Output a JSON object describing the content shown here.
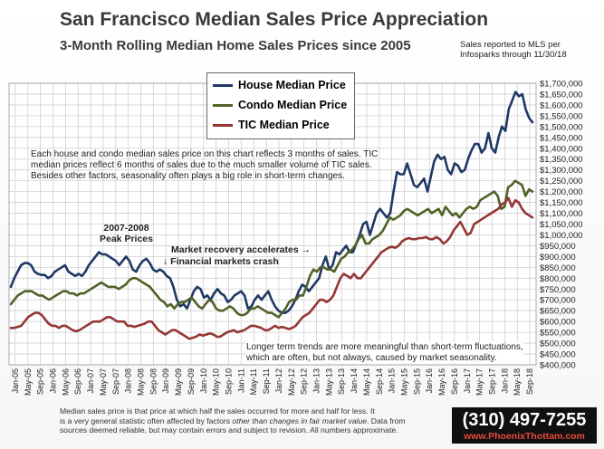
{
  "header": {
    "title": "San Francisco Median Sales Price Appreciation",
    "subtitle": "3-Month Rolling Median Home Sales Prices since 2005",
    "source_line1": "Sales reported to MLS per",
    "source_line2": "Infosparks  through  11/30/18"
  },
  "annotations": {
    "intro_line1": "Each house and condo median sales price on this chart reflects 3 months of sales. TIC",
    "intro_line2": "median prices reflect 6 months of sales due to the much smaller volume of TIC sales.",
    "intro_line3": "Besides other factors, seasonality often plays a big role in short-term  changes.",
    "peak_line1": "2007-2008",
    "peak_line2": "Peak Prices",
    "recovery": "Market recovery accelerates →",
    "crash": "↓ Financial markets crash",
    "trends_line1": "Longer term trends are more meaningful than short-term fluctuations,",
    "trends_line2": "which are often, but not always, caused by market seasonality."
  },
  "footer": {
    "line1_a": "Median sales price is that price at which half the sales occurred for more and half for less. It",
    "line2_a": "is a very general statistic often affected by factors ",
    "line2_em": "other than changes in fair market value",
    "line2_b": ". Data from",
    "line3": "sources deemed reliable, but may contain errors and subject to revision. All numbers approximate.",
    "phone": "(310) 497-7255",
    "website": "www.PhoenixThottam.com"
  },
  "colors": {
    "house": "#1f3864",
    "condo": "#4f6228",
    "tic": "#943634",
    "grid": "#d0d0d0"
  },
  "chart_data": {
    "type": "line",
    "x_ticks": [
      "Jan-05",
      "May-05",
      "Sep-05",
      "Jan-06",
      "May-06",
      "Sep-06",
      "Jan-07",
      "May-07",
      "Sep-07",
      "Jan-08",
      "May-08",
      "Sep-08",
      "Jan-09",
      "May-09",
      "Sep-09",
      "Jan-10",
      "May-10",
      "Sep-10",
      "Jan-11",
      "May-11",
      "Sep-11",
      "Jan-12",
      "May-12",
      "Sep-12",
      "Jan-13",
      "May-13",
      "Sep-13",
      "Jan-14",
      "May-14",
      "Sep-14",
      "Jan-15",
      "May-15",
      "Sep-15",
      "Jan-16",
      "May-16",
      "Sep-16",
      "Jan-17",
      "May-17",
      "Sep-17",
      "Jan-18",
      "May-18",
      "Sep-18"
    ],
    "y_ticks": [
      "$400,000",
      "$450,000",
      "$500,000",
      "$550,000",
      "$600,000",
      "$650,000",
      "$700,000",
      "$750,000",
      "$800,000",
      "$850,000",
      "$900,000",
      "$950,000",
      "$1,000,000",
      "$1,050,000",
      "$1,100,000",
      "$1,150,000",
      "$1,200,000",
      "$1,250,000",
      "$1,300,000",
      "$1,350,000",
      "$1,400,000",
      "$1,450,000",
      "$1,500,000",
      "$1,550,000",
      "$1,600,000",
      "$1,650,000",
      "$1,700,000"
    ],
    "ylim": [
      400000,
      1700000
    ],
    "grid": true,
    "legend_position": "top-center",
    "series": [
      {
        "name": "House Median Price",
        "values": [
          760000,
          800000,
          830000,
          860000,
          870000,
          870000,
          860000,
          830000,
          820000,
          815000,
          815000,
          800000,
          810000,
          830000,
          840000,
          850000,
          860000,
          830000,
          820000,
          810000,
          820000,
          810000,
          830000,
          860000,
          880000,
          900000,
          920000,
          910000,
          910000,
          900000,
          890000,
          880000,
          860000,
          880000,
          900000,
          880000,
          840000,
          830000,
          860000,
          880000,
          890000,
          870000,
          840000,
          830000,
          840000,
          830000,
          810000,
          800000,
          760000,
          700000,
          670000,
          680000,
          660000,
          700000,
          740000,
          760000,
          750000,
          710000,
          720000,
          700000,
          730000,
          750000,
          730000,
          720000,
          690000,
          700000,
          720000,
          730000,
          740000,
          720000,
          660000,
          670000,
          700000,
          720000,
          700000,
          720000,
          740000,
          700000,
          670000,
          650000,
          640000,
          640000,
          650000,
          670000,
          700000,
          740000,
          770000,
          760000,
          740000,
          760000,
          780000,
          800000,
          860000,
          900000,
          840000,
          860000,
          920000,
          910000,
          930000,
          950000,
          920000,
          920000,
          960000,
          1000000,
          1050000,
          1060000,
          1000000,
          1050000,
          1100000,
          1120000,
          1100000,
          1080000,
          1100000,
          1200000,
          1290000,
          1280000,
          1280000,
          1330000,
          1280000,
          1230000,
          1220000,
          1240000,
          1260000,
          1200000,
          1270000,
          1340000,
          1370000,
          1350000,
          1360000,
          1300000,
          1280000,
          1330000,
          1320000,
          1290000,
          1300000,
          1350000,
          1390000,
          1420000,
          1420000,
          1380000,
          1400000,
          1470000,
          1400000,
          1380000,
          1450000,
          1500000,
          1480000,
          1580000,
          1620000,
          1660000,
          1640000,
          1650000,
          1580000,
          1540000,
          1520000
        ]
      },
      {
        "name": "Condo Median Price",
        "values": [
          680000,
          700000,
          720000,
          730000,
          740000,
          740000,
          740000,
          730000,
          720000,
          720000,
          710000,
          700000,
          710000,
          720000,
          730000,
          740000,
          740000,
          730000,
          730000,
          720000,
          730000,
          730000,
          740000,
          750000,
          760000,
          770000,
          780000,
          770000,
          760000,
          760000,
          760000,
          750000,
          760000,
          770000,
          790000,
          800000,
          800000,
          790000,
          780000,
          770000,
          760000,
          740000,
          720000,
          700000,
          690000,
          670000,
          680000,
          660000,
          680000,
          690000,
          690000,
          700000,
          710000,
          690000,
          670000,
          660000,
          680000,
          700000,
          690000,
          660000,
          650000,
          650000,
          660000,
          670000,
          660000,
          640000,
          630000,
          630000,
          640000,
          660000,
          660000,
          670000,
          660000,
          650000,
          640000,
          640000,
          630000,
          620000,
          640000,
          660000,
          690000,
          700000,
          700000,
          720000,
          720000,
          760000,
          810000,
          840000,
          830000,
          850000,
          850000,
          840000,
          840000,
          830000,
          860000,
          890000,
          900000,
          920000,
          930000,
          950000,
          980000,
          1000000,
          960000,
          960000,
          980000,
          990000,
          1000000,
          1020000,
          1050000,
          1080000,
          1070000,
          1080000,
          1090000,
          1110000,
          1120000,
          1110000,
          1100000,
          1090000,
          1100000,
          1110000,
          1120000,
          1100000,
          1110000,
          1120000,
          1090000,
          1130000,
          1110000,
          1090000,
          1100000,
          1080000,
          1100000,
          1120000,
          1130000,
          1120000,
          1130000,
          1160000,
          1170000,
          1180000,
          1190000,
          1200000,
          1180000,
          1120000,
          1130000,
          1220000,
          1230000,
          1250000,
          1240000,
          1230000,
          1180000,
          1210000,
          1200000
        ]
      },
      {
        "name": "TIC Median Price",
        "values": [
          570000,
          570000,
          575000,
          580000,
          600000,
          620000,
          630000,
          640000,
          640000,
          630000,
          610000,
          590000,
          580000,
          580000,
          570000,
          580000,
          580000,
          570000,
          560000,
          555000,
          560000,
          570000,
          580000,
          590000,
          600000,
          600000,
          600000,
          610000,
          620000,
          620000,
          610000,
          600000,
          600000,
          600000,
          580000,
          580000,
          575000,
          580000,
          585000,
          590000,
          600000,
          600000,
          580000,
          560000,
          550000,
          540000,
          550000,
          560000,
          560000,
          550000,
          540000,
          530000,
          520000,
          525000,
          530000,
          540000,
          535000,
          540000,
          545000,
          540000,
          530000,
          530000,
          540000,
          550000,
          555000,
          560000,
          550000,
          555000,
          560000,
          570000,
          580000,
          580000,
          575000,
          570000,
          560000,
          560000,
          570000,
          580000,
          570000,
          575000,
          570000,
          565000,
          570000,
          580000,
          600000,
          620000,
          630000,
          640000,
          660000,
          680000,
          700000,
          700000,
          690000,
          700000,
          720000,
          760000,
          800000,
          820000,
          810000,
          800000,
          820000,
          800000,
          800000,
          820000,
          840000,
          860000,
          880000,
          900000,
          920000,
          930000,
          940000,
          945000,
          940000,
          950000,
          970000,
          980000,
          985000,
          980000,
          980000,
          985000,
          985000,
          990000,
          980000,
          980000,
          990000,
          980000,
          960000,
          970000,
          990000,
          1020000,
          1040000,
          1060000,
          1030000,
          1000000,
          1010000,
          1050000,
          1060000,
          1070000,
          1080000,
          1090000,
          1100000,
          1110000,
          1120000,
          1140000,
          1150000,
          1170000,
          1130000,
          1160000,
          1150000,
          1120000,
          1100000,
          1090000,
          1080000
        ]
      }
    ]
  }
}
